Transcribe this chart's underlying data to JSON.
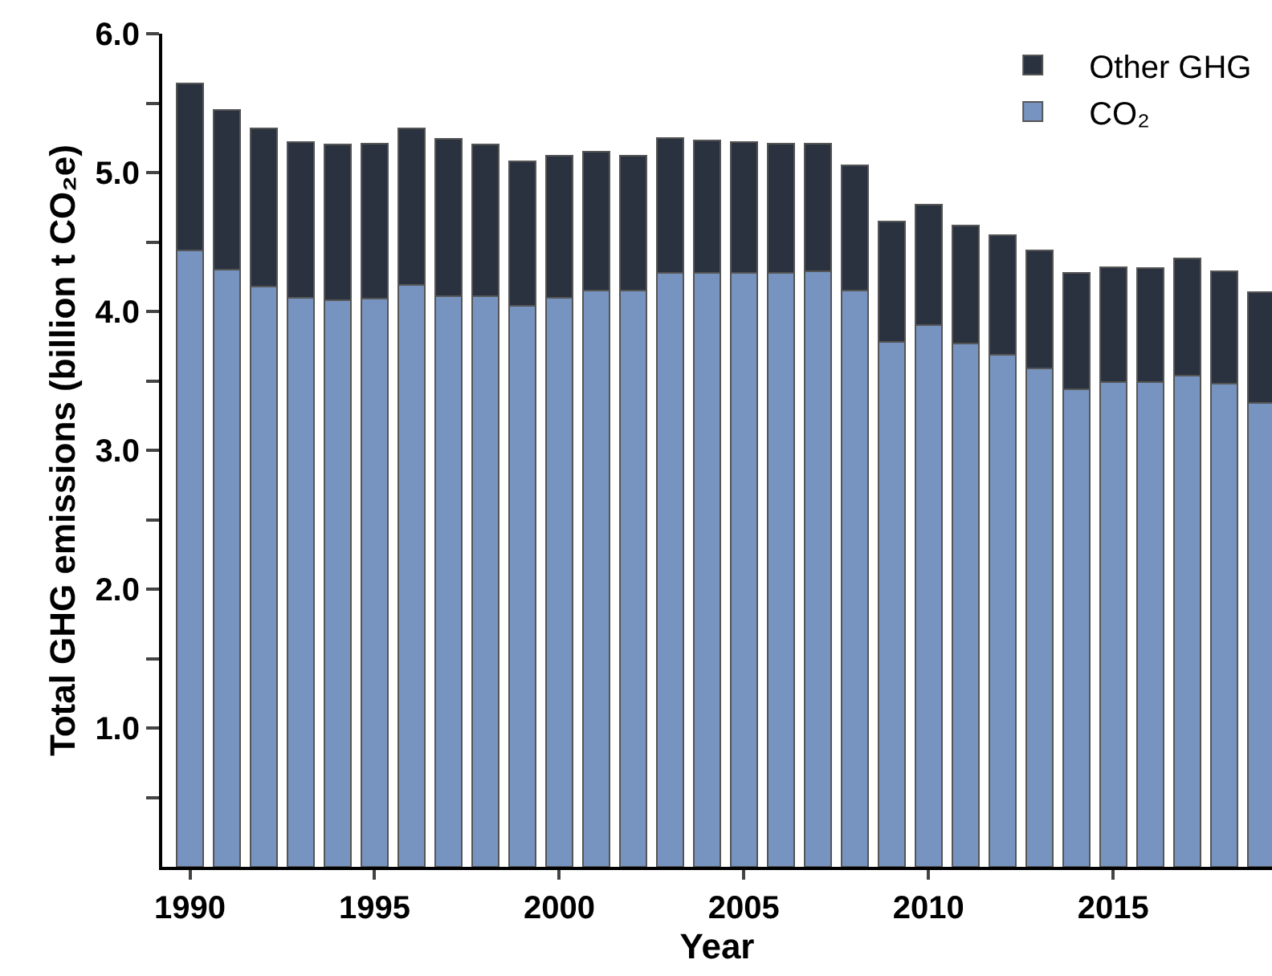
{
  "chart_data": {
    "type": "bar",
    "stacked": true,
    "xlabel": "Year",
    "ylabel": "Total GHG emissions (billion t CO₂e)",
    "x": [
      1990,
      1991,
      1992,
      1993,
      1994,
      1995,
      1996,
      1997,
      1998,
      1999,
      2000,
      2001,
      2002,
      2003,
      2004,
      2005,
      2006,
      2007,
      2008,
      2009,
      2010,
      2011,
      2012,
      2013,
      2014,
      2015,
      2016,
      2017,
      2018,
      2019
    ],
    "series": [
      {
        "name": "CO₂",
        "color": "#7794c0",
        "values": [
          4.44,
          4.3,
          4.18,
          4.1,
          4.08,
          4.09,
          4.19,
          4.11,
          4.11,
          4.04,
          4.1,
          4.15,
          4.15,
          4.28,
          4.28,
          4.28,
          4.28,
          4.29,
          4.15,
          3.78,
          3.9,
          3.77,
          3.69,
          3.59,
          3.44,
          3.49,
          3.49,
          3.54,
          3.48,
          3.34
        ]
      },
      {
        "name": "Other GHG",
        "color": "#2a3240",
        "values": [
          1.2,
          1.15,
          1.14,
          1.12,
          1.12,
          1.12,
          1.13,
          1.13,
          1.09,
          1.04,
          1.02,
          1.0,
          0.97,
          0.97,
          0.95,
          0.94,
          0.93,
          0.92,
          0.9,
          0.87,
          0.87,
          0.85,
          0.86,
          0.85,
          0.84,
          0.83,
          0.82,
          0.84,
          0.81,
          0.8
        ]
      }
    ],
    "xlim": [
      1989.25,
      2019.3
    ],
    "xticks": [
      1990,
      1995,
      2000,
      2005,
      2010,
      2015
    ],
    "ylim": [
      0,
      6
    ],
    "yticks": [
      {
        "value": 0.5,
        "label": null
      },
      {
        "value": 1,
        "label": "1.0"
      },
      {
        "value": 1.5,
        "label": null
      },
      {
        "value": 2,
        "label": "2.0"
      },
      {
        "value": 2.5,
        "label": null
      },
      {
        "value": 3,
        "label": "3.0"
      },
      {
        "value": 3.5,
        "label": null
      },
      {
        "value": 4,
        "label": "4.0"
      },
      {
        "value": 4.5,
        "label": null
      },
      {
        "value": 5,
        "label": "5.0"
      },
      {
        "value": 5.5,
        "label": null
      },
      {
        "value": 6,
        "label": "6.0"
      }
    ],
    "legend": "top right"
  }
}
